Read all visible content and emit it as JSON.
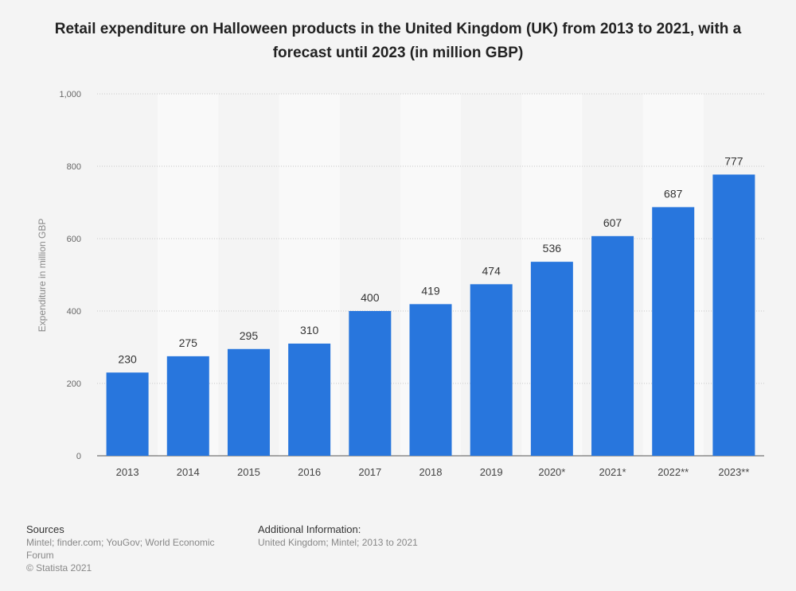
{
  "chart_data": {
    "type": "bar",
    "title": "Retail expenditure on Halloween products in the United Kingdom (UK) from 2013 to 2021, with a forecast until 2023 (in million GBP)",
    "categories": [
      "2013",
      "2014",
      "2015",
      "2016",
      "2017",
      "2018",
      "2019",
      "2020*",
      "2021*",
      "2022**",
      "2023**"
    ],
    "values": [
      230,
      275,
      295,
      310,
      400,
      419,
      474,
      536,
      607,
      687,
      777
    ],
    "ylabel": "Expenditure in million GBP",
    "xlabel": "",
    "ylim": [
      0,
      1000
    ],
    "yticks": [
      "0",
      "200",
      "400",
      "600",
      "800",
      "1,000"
    ],
    "grid": true,
    "bar_color": "#2876dd"
  },
  "footer": {
    "sources_heading": "Sources",
    "sources_text": "Mintel; finder.com; YouGov; World Economic Forum",
    "copyright": "© Statista 2021",
    "additional_heading": "Additional Information:",
    "additional_text": "United Kingdom; Mintel; 2013 to 2021"
  }
}
